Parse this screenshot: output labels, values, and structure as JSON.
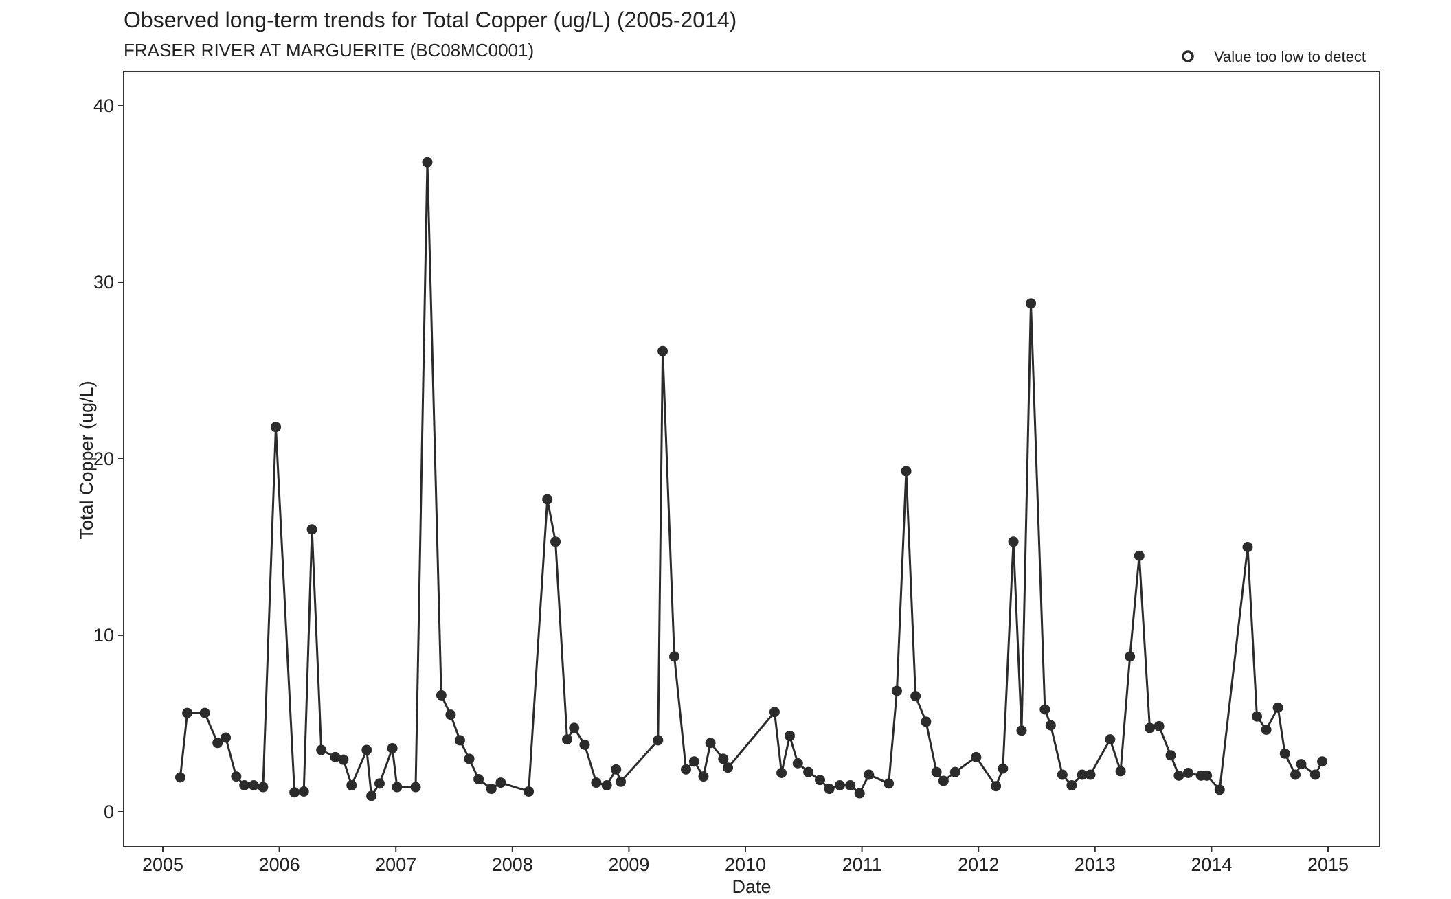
{
  "chart_data": {
    "type": "line",
    "title": "Observed long-term trends for Total Copper (ug/L) (2005-2014)",
    "subtitle": "FRASER RIVER AT MARGUERITE (BC08MC0001)",
    "xlabel": "Date",
    "ylabel": "Total Copper (ug/L)",
    "xlim": [
      2004.8,
      2015.2
    ],
    "ylim": [
      -2,
      42
    ],
    "x_ticks": [
      2005,
      2006,
      2007,
      2008,
      2009,
      2010,
      2011,
      2012,
      2013,
      2014,
      2015
    ],
    "y_ticks": [
      0,
      10,
      20,
      30,
      40
    ],
    "legend": {
      "position": "top-right",
      "entries": [
        "Value too low to detect"
      ]
    },
    "grid": false,
    "color": "#2b2b2b",
    "series": [
      {
        "name": "Total Copper",
        "x": [
          2005.15,
          2005.21,
          2005.36,
          2005.47,
          2005.54,
          2005.63,
          2005.7,
          2005.78,
          2005.86,
          2005.97,
          2006.13,
          2006.21,
          2006.28,
          2006.36,
          2006.48,
          2006.55,
          2006.62,
          2006.75,
          2006.79,
          2006.86,
          2006.97,
          2007.01,
          2007.17,
          2007.27,
          2007.39,
          2007.47,
          2007.55,
          2007.63,
          2007.71,
          2007.82,
          2007.9,
          2008.14,
          2008.3,
          2008.37,
          2008.47,
          2008.53,
          2008.62,
          2008.72,
          2008.81,
          2008.89,
          2008.93,
          2009.25,
          2009.29,
          2009.39,
          2009.49,
          2009.56,
          2009.64,
          2009.7,
          2009.81,
          2009.85,
          2010.25,
          2010.31,
          2010.38,
          2010.45,
          2010.54,
          2010.64,
          2010.72,
          2010.81,
          2010.9,
          2010.98,
          2011.06,
          2011.23,
          2011.3,
          2011.38,
          2011.46,
          2011.55,
          2011.64,
          2011.7,
          2011.8,
          2011.98,
          2012.15,
          2012.21,
          2012.3,
          2012.37,
          2012.45,
          2012.57,
          2012.62,
          2012.72,
          2012.8,
          2012.89,
          2012.96,
          2013.13,
          2013.22,
          2013.3,
          2013.38,
          2013.47,
          2013.55,
          2013.65,
          2013.72,
          2013.8,
          2013.91,
          2013.96,
          2014.07,
          2014.31,
          2014.39,
          2014.47,
          2014.57,
          2014.63,
          2014.72,
          2014.77,
          2014.89,
          2014.95
        ],
        "y": [
          1.95,
          5.6,
          5.6,
          3.9,
          4.2,
          2.0,
          1.5,
          1.5,
          1.4,
          21.8,
          1.1,
          1.15,
          16.0,
          3.5,
          3.1,
          2.95,
          1.5,
          3.5,
          0.9,
          1.6,
          3.6,
          1.4,
          1.4,
          36.8,
          6.6,
          5.5,
          4.05,
          3.0,
          1.85,
          1.3,
          1.65,
          1.15,
          17.7,
          15.3,
          4.1,
          4.75,
          3.8,
          1.65,
          1.5,
          2.4,
          1.7,
          4.05,
          26.1,
          8.8,
          2.4,
          2.85,
          2.0,
          3.9,
          3.0,
          2.5,
          5.65,
          2.2,
          4.3,
          2.75,
          2.25,
          1.8,
          1.3,
          1.5,
          1.5,
          1.05,
          2.1,
          1.6,
          6.85,
          19.3,
          6.55,
          5.1,
          2.25,
          1.75,
          2.25,
          3.1,
          1.45,
          2.45,
          15.3,
          4.6,
          28.8,
          5.8,
          4.9,
          2.1,
          1.5,
          2.1,
          2.1,
          4.1,
          2.3,
          8.8,
          14.5,
          4.75,
          4.85,
          3.2,
          2.05,
          2.2,
          2.05,
          2.05,
          1.25,
          15.0,
          5.4,
          4.65,
          5.9,
          3.3,
          2.1,
          2.7,
          2.1,
          2.85
        ]
      }
    ]
  }
}
